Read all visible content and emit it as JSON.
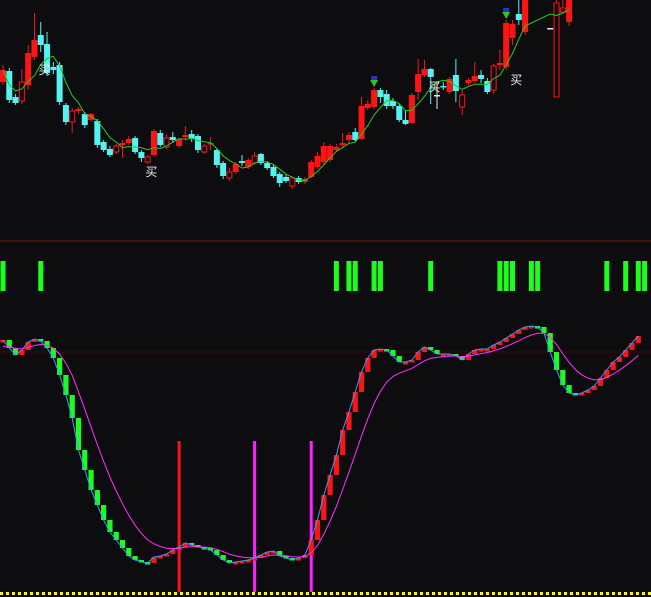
{
  "colors": {
    "background": "#0d0c0f",
    "up": "#ff1414",
    "down": "#55f2f2",
    "doji": "#e8e8e8",
    "ma": "#22cc22",
    "signal_bar": "#1cff1c",
    "indicator_up": "#ff1414",
    "indicator_down": "#1cff1c",
    "indicator_line": "#3a9cff",
    "indicator_signal": "#ff30ff",
    "vline_red": "#ff1414",
    "vline_magenta": "#ff20ff",
    "baseline": "#ffff00",
    "separator": "#7a1212",
    "grid": "#3a0c0c"
  },
  "chart_data": [
    {
      "type": "candlestick",
      "panel": "price",
      "title": "",
      "candles": [
        [
          158,
          170,
          175,
          155
        ],
        [
          169,
          140,
          172,
          137
        ],
        [
          143,
          137,
          146,
          135
        ],
        [
          139,
          158,
          171,
          136
        ],
        [
          155,
          187,
          195,
          150
        ],
        [
          183,
          200,
          227,
          180
        ],
        [
          205,
          195,
          218,
          188
        ],
        [
          196,
          167,
          208,
          164
        ],
        [
          173,
          170,
          178,
          166
        ],
        [
          175,
          138,
          178,
          135
        ],
        [
          135,
          118,
          137,
          115
        ],
        [
          118,
          129,
          132,
          107
        ],
        [
          129,
          131,
          133,
          126
        ],
        [
          126,
          115,
          128,
          112
        ],
        [
          120,
          126,
          127,
          118
        ],
        [
          119,
          95,
          121,
          92
        ],
        [
          98,
          90,
          100,
          88
        ],
        [
          91,
          85,
          94,
          83
        ],
        [
          88,
          94,
          96,
          86
        ],
        [
          95,
          97,
          100,
          82
        ],
        [
          97,
          101,
          104,
          95
        ],
        [
          102,
          88,
          104,
          86
        ],
        [
          88,
          82,
          90,
          78
        ],
        [
          78,
          83,
          85,
          76
        ],
        [
          85,
          109,
          111,
          84
        ],
        [
          107,
          95,
          110,
          93
        ],
        [
          93,
          102,
          106,
          91
        ],
        [
          103,
          100,
          108,
          97
        ],
        [
          94,
          101,
          102,
          92
        ],
        [
          103,
          105,
          114,
          100
        ],
        [
          106,
          101,
          110,
          98
        ],
        [
          104,
          90,
          106,
          87
        ],
        [
          88,
          94,
          96,
          86
        ],
        [
          96,
          97,
          103,
          90
        ],
        [
          90,
          75,
          92,
          72
        ],
        [
          77,
          64,
          79,
          61
        ],
        [
          62,
          68,
          72,
          59
        ],
        [
          68,
          76,
          78,
          66
        ],
        [
          79,
          77,
          85,
          74
        ],
        [
          73,
          80,
          82,
          71
        ],
        [
          77,
          84,
          88,
          75
        ],
        [
          86,
          77,
          87,
          75
        ],
        [
          77,
          72,
          79,
          70
        ],
        [
          73,
          64,
          75,
          62
        ],
        [
          66,
          57,
          68,
          53
        ],
        [
          63,
          59,
          66,
          57
        ],
        [
          54,
          62,
          64,
          51
        ],
        [
          62,
          58,
          64,
          56
        ],
        [
          58,
          61,
          63,
          56
        ],
        [
          63,
          78,
          80,
          62
        ],
        [
          73,
          84,
          88,
          71
        ],
        [
          78,
          94,
          98,
          76
        ],
        [
          80,
          94,
          96,
          78
        ],
        [
          90,
          93,
          96,
          88
        ],
        [
          95,
          97,
          107,
          93
        ],
        [
          100,
          105,
          108,
          97
        ],
        [
          108,
          100,
          112,
          98
        ],
        [
          101,
          134,
          143,
          100
        ],
        [
          132,
          136,
          140,
          130
        ],
        [
          133,
          150,
          152,
          131
        ],
        [
          150,
          143,
          152,
          137
        ],
        [
          146,
          134,
          150,
          131
        ],
        [
          139,
          134,
          142,
          131
        ],
        [
          134,
          120,
          136,
          118
        ],
        [
          120,
          116,
          130,
          115
        ],
        [
          117,
          145,
          147,
          116
        ],
        [
          148,
          166,
          181,
          140
        ],
        [
          165,
          171,
          180,
          163
        ],
        [
          171,
          163,
          172,
          136
        ],
        [
          145,
          145,
          157,
          131
        ],
        [
          154,
          153,
          158,
          150
        ],
        [
          148,
          161,
          163,
          146
        ],
        [
          165,
          149,
          181,
          138
        ],
        [
          133,
          145,
          150,
          125
        ],
        [
          157,
          160,
          162,
          155
        ],
        [
          159,
          164,
          178,
          157
        ],
        [
          165,
          161,
          170,
          157
        ],
        [
          159,
          148,
          162,
          146
        ],
        [
          150,
          174,
          176,
          146
        ],
        [
          175,
          177,
          190,
          170
        ],
        [
          173,
          217,
          220,
          170
        ],
        [
          202,
          216,
          220,
          195
        ],
        [
          226,
          220,
          240,
          215
        ],
        [
          208,
          240,
          240,
          205
        ],
        null,
        null,
        null,
        [
          212,
          212,
          212,
          212
        ],
        [
          143,
          237,
          240,
          143
        ],
        [
          228,
          232,
          240,
          226
        ],
        [
          218,
          240,
          240,
          214
        ]
      ],
      "hollow": [
        3,
        11,
        18,
        23,
        26,
        32,
        36,
        40,
        46,
        73,
        78,
        88,
        89
      ],
      "doji": [
        69,
        87
      ],
      "moving_average": {
        "period": 5
      },
      "buy_labels": [
        {
          "index": 5,
          "text": "买"
        },
        {
          "index": 22,
          "text": "买"
        },
        {
          "index": 67,
          "text": "买"
        },
        {
          "index": 80,
          "text": "买"
        }
      ],
      "arrow_markers": [
        59,
        80
      ]
    },
    {
      "type": "bar",
      "panel": "signals",
      "title": "",
      "signal_indices": [
        0,
        6,
        53,
        55,
        56,
        59,
        60,
        68,
        79,
        80,
        81,
        84,
        85,
        96,
        99,
        101,
        102
      ]
    },
    {
      "type": "bar",
      "panel": "indicator",
      "title": "",
      "values": [
        260,
        252,
        245,
        250,
        258,
        261,
        259,
        252,
        242,
        225,
        205,
        182,
        150,
        130,
        110,
        95,
        80,
        68,
        60,
        52,
        44,
        40,
        38,
        37,
        43,
        44,
        46,
        50,
        53,
        57,
        55,
        53,
        52,
        50,
        45,
        40,
        37,
        38,
        39,
        40,
        42,
        45,
        48,
        49,
        44,
        42,
        40,
        42,
        45,
        60,
        80,
        105,
        125,
        145,
        170,
        188,
        208,
        228,
        242,
        250,
        251,
        250,
        244,
        238,
        238,
        240,
        248,
        253,
        250,
        246,
        246,
        246,
        244,
        240,
        246,
        250,
        251,
        251,
        255,
        258,
        262,
        266,
        270,
        273,
        274,
        273,
        267,
        248,
        230,
        215,
        207,
        205,
        207,
        210,
        214,
        222,
        230,
        238,
        243,
        250,
        257,
        264
      ],
      "signal_line": {
        "type": "ema",
        "period": 8
      },
      "vertical_markers": [
        {
          "index": 28,
          "color": "red"
        },
        {
          "index": 40,
          "color": "magenta"
        },
        {
          "index": 49,
          "color": "magenta"
        }
      ]
    }
  ]
}
